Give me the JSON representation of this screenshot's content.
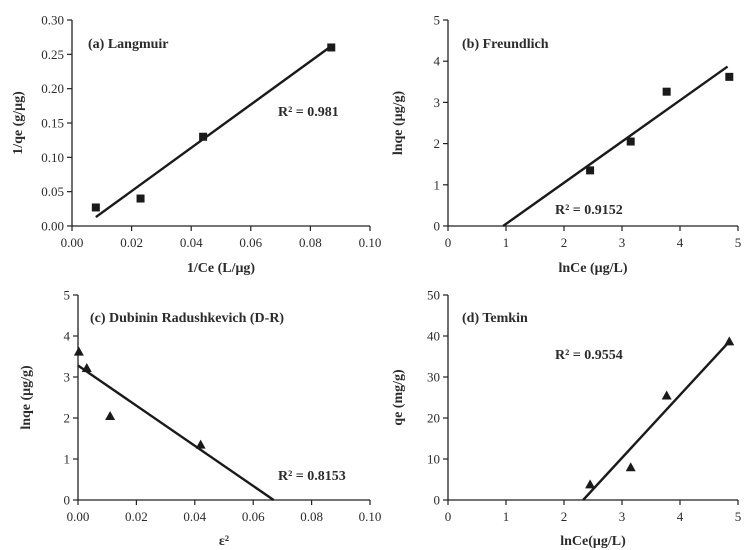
{
  "chart_data": [
    {
      "type": "scatter",
      "title": "(a)  Langmuir",
      "xlabel": "1/Ce (L/μg)",
      "ylabel": "1/qe (g/μg)",
      "xlim": [
        0,
        0.1
      ],
      "ylim": [
        0,
        0.3
      ],
      "xticks": [
        "0.00",
        "0.02",
        "0.04",
        "0.06",
        "0.08",
        "0.10"
      ],
      "yticks": [
        "0.00",
        "0.05",
        "0.10",
        "0.15",
        "0.20",
        "0.25",
        "0.30"
      ],
      "marker": "square",
      "points": [
        {
          "x": 0.008,
          "y": 0.027
        },
        {
          "x": 0.023,
          "y": 0.04
        },
        {
          "x": 0.044,
          "y": 0.13
        },
        {
          "x": 0.087,
          "y": 0.26
        }
      ],
      "fit_line": [
        [
          0.008,
          0.013
        ],
        [
          0.087,
          0.262
        ]
      ],
      "annotation": "R² = 0.981"
    },
    {
      "type": "scatter",
      "title": "(b)  Freundlich",
      "xlabel": "lnCe (μg/L)",
      "ylabel": "lnqe (μg/g)",
      "xlim": [
        0,
        5
      ],
      "ylim": [
        0,
        5
      ],
      "xticks": [
        "0",
        "1",
        "2",
        "3",
        "4",
        "5"
      ],
      "yticks": [
        "0",
        "1",
        "2",
        "3",
        "4",
        "5"
      ],
      "marker": "square",
      "points": [
        {
          "x": 2.45,
          "y": 1.35
        },
        {
          "x": 3.15,
          "y": 2.05
        },
        {
          "x": 3.77,
          "y": 3.26
        },
        {
          "x": 4.85,
          "y": 3.62
        }
      ],
      "fit_line": [
        [
          0.95,
          0.0
        ],
        [
          4.82,
          3.87
        ]
      ],
      "annotation": "R² = 0.9152"
    },
    {
      "type": "scatter",
      "title": "(c)  Dubinin Radushkevich (D-R)",
      "xlabel": "ε²",
      "ylabel": "lnqe (μg/g)",
      "xlim": [
        0,
        0.1
      ],
      "ylim": [
        0,
        5
      ],
      "xticks": [
        "0.00",
        "0.02",
        "0.04",
        "0.06",
        "0.08",
        "0.10"
      ],
      "yticks": [
        "0",
        "1",
        "2",
        "3",
        "4",
        "5"
      ],
      "marker": "triangle",
      "points": [
        {
          "x": 0.0003,
          "y": 3.62
        },
        {
          "x": 0.003,
          "y": 3.22
        },
        {
          "x": 0.011,
          "y": 2.05
        },
        {
          "x": 0.042,
          "y": 1.35
        }
      ],
      "fit_line": [
        [
          0.0,
          3.28
        ],
        [
          0.067,
          0.0
        ]
      ],
      "annotation": "R² = 0.8153"
    },
    {
      "type": "scatter",
      "title": "(d)  Temkin",
      "xlabel": "lnCe(μg/L)",
      "ylabel": "qe (mg/g)",
      "xlim": [
        0,
        5
      ],
      "ylim": [
        0,
        50
      ],
      "xticks": [
        "0",
        "1",
        "2",
        "3",
        "4",
        "5"
      ],
      "yticks": [
        "0",
        "10",
        "20",
        "30",
        "40",
        "50"
      ],
      "marker": "triangle",
      "points": [
        {
          "x": 2.45,
          "y": 3.8
        },
        {
          "x": 3.15,
          "y": 8.0
        },
        {
          "x": 3.77,
          "y": 25.5
        },
        {
          "x": 4.85,
          "y": 38.7
        }
      ],
      "fit_line": [
        [
          2.33,
          0.0
        ],
        [
          4.84,
          38.5
        ]
      ],
      "annotation": "R² = 0.9554"
    }
  ]
}
